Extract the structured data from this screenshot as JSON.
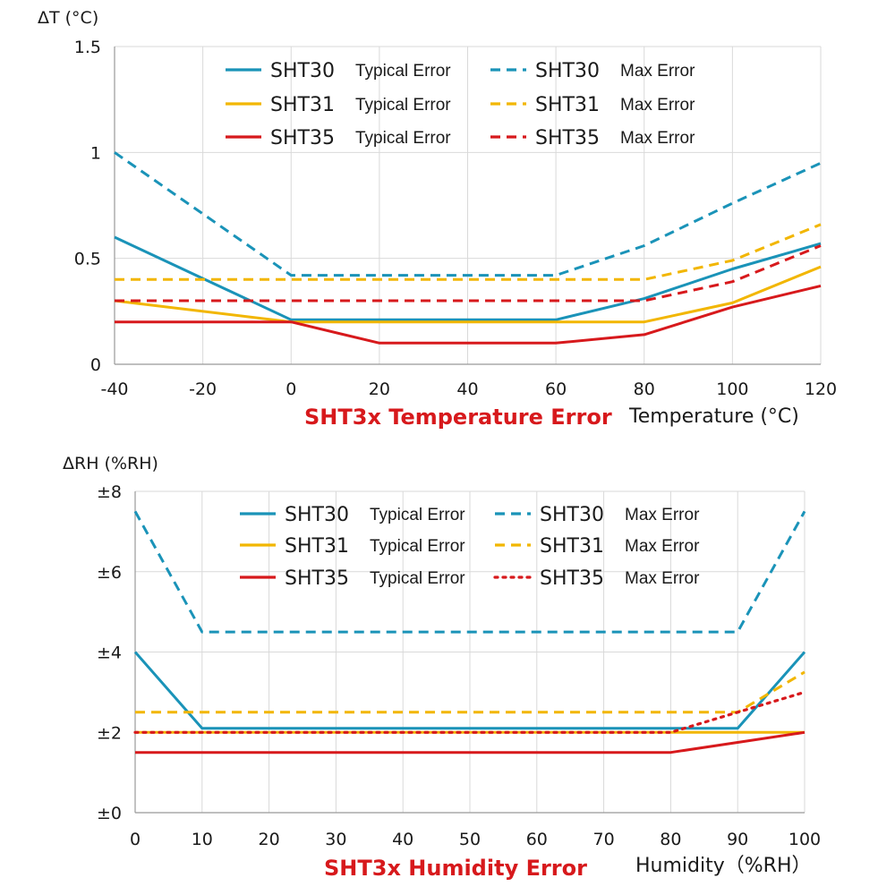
{
  "colors": {
    "sht30": "#1a93b8",
    "sht31": "#f2b600",
    "sht35": "#d7191c",
    "title": "#d7191c"
  },
  "legend_kinds": {
    "typical": "Typical Error",
    "max": "Max Error"
  },
  "chart_data": [
    {
      "type": "line",
      "title": "SHT3x Temperature Error",
      "ylabel": "ΔT (°C)",
      "xlabel": "Temperature (°C)",
      "xlim": [
        -40,
        120
      ],
      "ylim": [
        0,
        1.5
      ],
      "x_ticks": [
        "-40",
        "-20",
        "0",
        "20",
        "40",
        "60",
        "80",
        "100",
        "120"
      ],
      "y_ticks": [
        {
          "value": 0,
          "label": "0"
        },
        {
          "value": 0.5,
          "label": "0.5"
        },
        {
          "value": 1,
          "label": "1"
        },
        {
          "value": 1.5,
          "label": "1.5"
        }
      ],
      "grid": true,
      "legend_position": "top",
      "series": [
        {
          "name": "SHT30",
          "kind": "typical",
          "color_key": "sht30",
          "style": "solid",
          "points": [
            [
              -40,
              0.6
            ],
            [
              0,
              0.21
            ],
            [
              60,
              0.21
            ],
            [
              80,
              0.31
            ],
            [
              100,
              0.45
            ],
            [
              120,
              0.57
            ]
          ]
        },
        {
          "name": "SHT30",
          "kind": "max",
          "color_key": "sht30",
          "style": "dashed",
          "points": [
            [
              -40,
              1.0
            ],
            [
              0,
              0.42
            ],
            [
              60,
              0.42
            ],
            [
              80,
              0.56
            ],
            [
              100,
              0.76
            ],
            [
              120,
              0.95
            ]
          ]
        },
        {
          "name": "SHT31",
          "kind": "typical",
          "color_key": "sht31",
          "style": "solid",
          "points": [
            [
              -40,
              0.3
            ],
            [
              0,
              0.2
            ],
            [
              60,
              0.2
            ],
            [
              80,
              0.2
            ],
            [
              100,
              0.29
            ],
            [
              120,
              0.46
            ]
          ]
        },
        {
          "name": "SHT31",
          "kind": "max",
          "color_key": "sht31",
          "style": "dashed",
          "points": [
            [
              -40,
              0.4
            ],
            [
              0,
              0.4
            ],
            [
              60,
              0.4
            ],
            [
              80,
              0.4
            ],
            [
              100,
              0.49
            ],
            [
              120,
              0.66
            ]
          ]
        },
        {
          "name": "SHT35",
          "kind": "typical",
          "color_key": "sht35",
          "style": "solid",
          "points": [
            [
              -40,
              0.2
            ],
            [
              0,
              0.2
            ],
            [
              20,
              0.1
            ],
            [
              60,
              0.1
            ],
            [
              80,
              0.14
            ],
            [
              100,
              0.27
            ],
            [
              120,
              0.37
            ]
          ]
        },
        {
          "name": "SHT35",
          "kind": "max",
          "color_key": "sht35",
          "style": "dashed",
          "points": [
            [
              -40,
              0.3
            ],
            [
              0,
              0.3
            ],
            [
              60,
              0.3
            ],
            [
              80,
              0.3
            ],
            [
              100,
              0.39
            ],
            [
              120,
              0.56
            ]
          ]
        }
      ]
    },
    {
      "type": "line",
      "title": "SHT3x Humidity Error",
      "ylabel": "ΔRH (%RH)",
      "xlabel": "Humidity（%RH）",
      "xlim": [
        0,
        100
      ],
      "ylim": [
        0,
        8
      ],
      "x_ticks": [
        "0",
        "10",
        "20",
        "30",
        "40",
        "50",
        "60",
        "70",
        "80",
        "90",
        "100"
      ],
      "y_ticks": [
        {
          "value": 0,
          "label": "±0"
        },
        {
          "value": 2,
          "label": "±2"
        },
        {
          "value": 4,
          "label": "±4"
        },
        {
          "value": 6,
          "label": "±6"
        },
        {
          "value": 8,
          "label": "±8"
        }
      ],
      "grid": true,
      "legend_position": "top",
      "series": [
        {
          "name": "SHT30",
          "kind": "typical",
          "color_key": "sht30",
          "style": "solid",
          "points": [
            [
              0,
              4.0
            ],
            [
              10,
              2.1
            ],
            [
              90,
              2.1
            ],
            [
              100,
              4.0
            ]
          ]
        },
        {
          "name": "SHT30",
          "kind": "max",
          "color_key": "sht30",
          "style": "dashed",
          "points": [
            [
              0,
              7.5
            ],
            [
              10,
              4.5
            ],
            [
              90,
              4.5
            ],
            [
              100,
              7.5
            ]
          ]
        },
        {
          "name": "SHT31",
          "kind": "typical",
          "color_key": "sht31",
          "style": "solid",
          "points": [
            [
              0,
              2.0
            ],
            [
              100,
              2.0
            ]
          ]
        },
        {
          "name": "SHT31",
          "kind": "max",
          "color_key": "sht31",
          "style": "dashed",
          "points": [
            [
              0,
              2.5
            ],
            [
              90,
              2.5
            ],
            [
              100,
              3.5
            ]
          ]
        },
        {
          "name": "SHT35",
          "kind": "typical",
          "color_key": "sht35",
          "style": "solid",
          "points": [
            [
              0,
              1.5
            ],
            [
              80,
              1.5
            ],
            [
              90,
              1.75
            ],
            [
              100,
              2.0
            ]
          ]
        },
        {
          "name": "SHT35",
          "kind": "max",
          "color_key": "sht35",
          "style": "dotted",
          "points": [
            [
              0,
              2.0
            ],
            [
              80,
              2.0
            ],
            [
              90,
              2.5
            ],
            [
              100,
              3.0
            ]
          ]
        }
      ]
    }
  ]
}
